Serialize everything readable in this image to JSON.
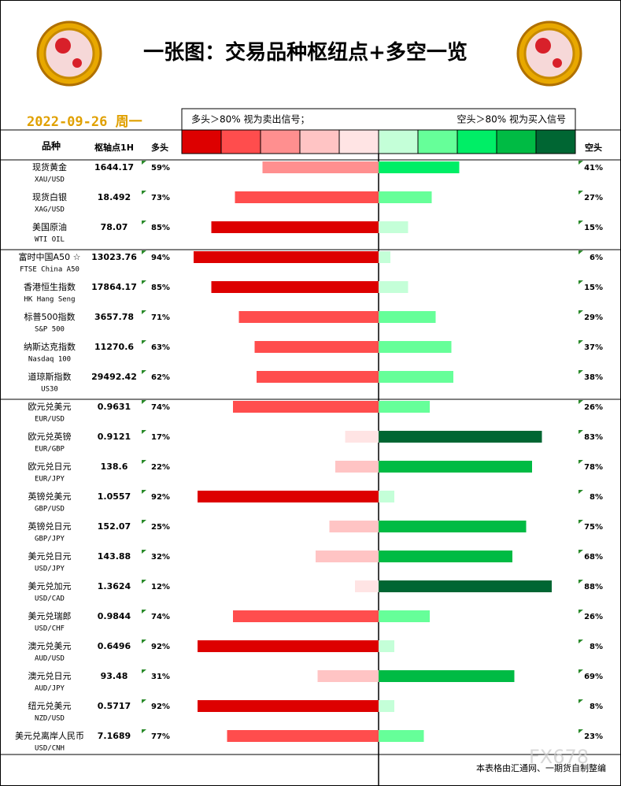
{
  "chart_data": {
    "type": "diverging_bar",
    "title": "一张图：交易品种枢纽点+多空一览",
    "date": "2022-09-26 周一",
    "legend_left": "多头＞80% 视为卖出信号；",
    "legend_right": "空头＞80% 视为买入信号",
    "colors": [
      "#dd0000",
      "#ff4d4d",
      "#ff8f8f",
      "#ffc4c4",
      "#ffe4e4",
      "#c4ffd8",
      "#66ff99",
      "#00ee66",
      "#00bb44",
      "#006633"
    ],
    "headers": {
      "name": "品种",
      "pivot": "枢轴点1H",
      "long": "多头",
      "short": "空头"
    },
    "xlim": [
      0,
      100
    ],
    "categories": [
      "现货黄金",
      "现货白银",
      "美国原油",
      "富时中国A50 ☆",
      "香港恒生指数",
      "标普500指数",
      "纳斯达克指数",
      "道琼斯指数",
      "欧元兑美元",
      "欧元兑英镑",
      "欧元兑日元",
      "英镑兑美元",
      "英镑兑日元",
      "美元兑日元",
      "美元兑加元",
      "美元兑瑞郎",
      "澳元兑美元",
      "澳元兑日元",
      "纽元兑美元",
      "美元兑离岸人民币"
    ],
    "codes": [
      "XAU/USD",
      "XAG/USD",
      "WTI OIL",
      "FTSE China A50",
      "HK Hang Seng",
      "S&P 500",
      "Nasdaq 100",
      "US30",
      "EUR/USD",
      "EUR/GBP",
      "EUR/JPY",
      "GBP/USD",
      "GBP/JPY",
      "USD/JPY",
      "USD/CAD",
      "USD/CHF",
      "AUD/USD",
      "AUD/JPY",
      "NZD/USD",
      "USD/CNH"
    ],
    "pivots": [
      "1644.17",
      "18.492",
      "78.07",
      "13023.76",
      "17864.17",
      "3657.78",
      "11270.6",
      "29492.42",
      "0.9631",
      "0.9121",
      "138.6",
      "1.0557",
      "152.07",
      "143.88",
      "1.3624",
      "0.9844",
      "0.6496",
      "93.48",
      "0.5717",
      "7.1689"
    ],
    "series": [
      {
        "name": "多头",
        "values": [
          59,
          73,
          85,
          94,
          85,
          71,
          63,
          62,
          74,
          17,
          22,
          92,
          25,
          32,
          12,
          74,
          92,
          31,
          92,
          77
        ],
        "value_labels": [
          "59%",
          "73%",
          "85%",
          "94%",
          "85%",
          "71%",
          "63%",
          "62%",
          "74%",
          "17%",
          "22%",
          "92%",
          "25%",
          "32%",
          "12%",
          "74%",
          "92%",
          "31%",
          "92%",
          "77%"
        ]
      },
      {
        "name": "空头",
        "values": [
          41,
          27,
          15,
          6,
          15,
          29,
          37,
          38,
          26,
          83,
          78,
          8,
          75,
          68,
          88,
          26,
          8,
          69,
          8,
          23
        ],
        "value_labels": [
          "41%",
          "27%",
          "15%",
          "6%",
          "15%",
          "29%",
          "37%",
          "38%",
          "26%",
          "83%",
          "78%",
          "8%",
          "75%",
          "68%",
          "88%",
          "26%",
          "8%",
          "69%",
          "8%",
          "23%"
        ]
      }
    ],
    "footer": "本表格由汇通网、一期货自制整编",
    "watermark": "FX678"
  }
}
